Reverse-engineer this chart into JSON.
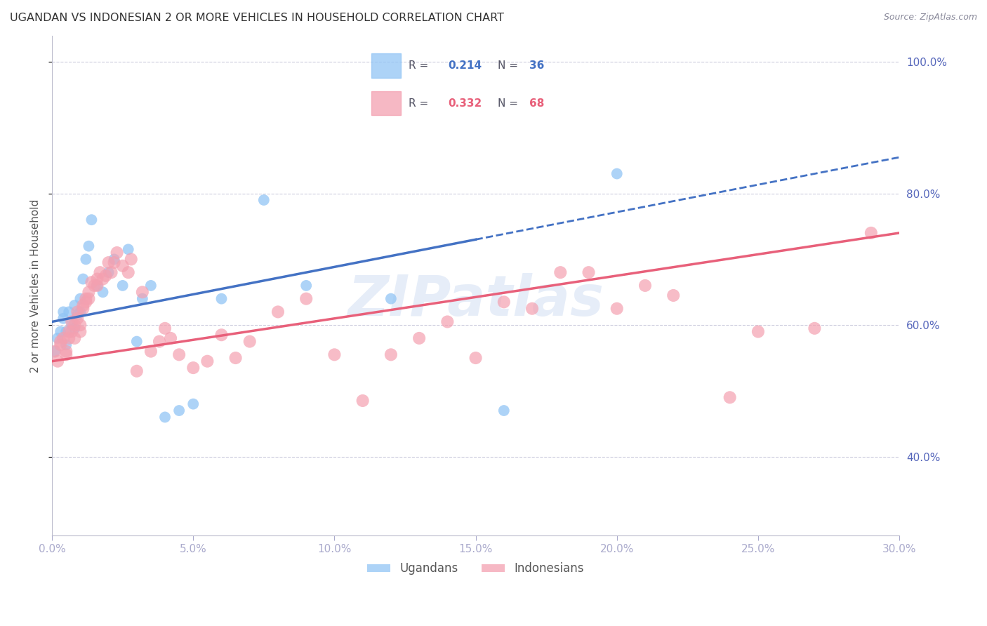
{
  "title": "UGANDAN VS INDONESIAN 2 OR MORE VEHICLES IN HOUSEHOLD CORRELATION CHART",
  "source": "Source: ZipAtlas.com",
  "ylabel": "2 or more Vehicles in Household",
  "xlim": [
    0.0,
    0.3
  ],
  "ylim": [
    0.28,
    1.04
  ],
  "xticks": [
    0.0,
    0.05,
    0.1,
    0.15,
    0.2,
    0.25,
    0.3
  ],
  "yticks_right": [
    0.4,
    0.6,
    0.8,
    1.0
  ],
  "ytick_labels_right": [
    "40.0%",
    "60.0%",
    "80.0%",
    "100.0%"
  ],
  "xtick_labels": [
    "0.0%",
    "5.0%",
    "10.0%",
    "15.0%",
    "20.0%",
    "25.0%",
    "30.0%"
  ],
  "ugandan_color": "#92C5F5",
  "indonesian_color": "#F4A0B0",
  "trend_ugandan_color": "#4472C4",
  "trend_indonesian_color": "#E8607A",
  "R_ugandan": 0.214,
  "N_ugandan": 36,
  "R_indonesian": 0.332,
  "N_indonesian": 68,
  "legend_label_ugandan": "Ugandans",
  "legend_label_indonesian": "Indonesians",
  "watermark": "ZIPatlas",
  "ugandan_x": [
    0.001,
    0.002,
    0.003,
    0.004,
    0.004,
    0.005,
    0.005,
    0.006,
    0.007,
    0.008,
    0.008,
    0.009,
    0.01,
    0.01,
    0.011,
    0.012,
    0.013,
    0.014,
    0.016,
    0.018,
    0.02,
    0.022,
    0.025,
    0.027,
    0.03,
    0.032,
    0.035,
    0.04,
    0.045,
    0.05,
    0.06,
    0.075,
    0.09,
    0.12,
    0.16,
    0.2
  ],
  "ugandan_y": [
    0.56,
    0.58,
    0.59,
    0.62,
    0.61,
    0.59,
    0.57,
    0.62,
    0.6,
    0.595,
    0.63,
    0.615,
    0.62,
    0.64,
    0.67,
    0.7,
    0.72,
    0.76,
    0.66,
    0.65,
    0.68,
    0.7,
    0.66,
    0.715,
    0.575,
    0.64,
    0.66,
    0.46,
    0.47,
    0.48,
    0.64,
    0.79,
    0.66,
    0.64,
    0.47,
    0.83
  ],
  "indonesian_x": [
    0.001,
    0.002,
    0.003,
    0.003,
    0.004,
    0.005,
    0.005,
    0.006,
    0.006,
    0.007,
    0.007,
    0.008,
    0.008,
    0.009,
    0.009,
    0.01,
    0.01,
    0.011,
    0.011,
    0.012,
    0.012,
    0.013,
    0.013,
    0.014,
    0.015,
    0.016,
    0.016,
    0.017,
    0.018,
    0.019,
    0.02,
    0.021,
    0.022,
    0.023,
    0.025,
    0.027,
    0.028,
    0.03,
    0.032,
    0.035,
    0.038,
    0.04,
    0.042,
    0.045,
    0.05,
    0.055,
    0.06,
    0.065,
    0.07,
    0.08,
    0.09,
    0.1,
    0.11,
    0.12,
    0.13,
    0.14,
    0.15,
    0.16,
    0.17,
    0.18,
    0.19,
    0.2,
    0.21,
    0.22,
    0.24,
    0.25,
    0.27,
    0.29
  ],
  "indonesian_y": [
    0.56,
    0.545,
    0.57,
    0.575,
    0.58,
    0.56,
    0.555,
    0.59,
    0.58,
    0.605,
    0.59,
    0.6,
    0.58,
    0.61,
    0.62,
    0.6,
    0.59,
    0.63,
    0.625,
    0.64,
    0.635,
    0.65,
    0.64,
    0.665,
    0.66,
    0.67,
    0.66,
    0.68,
    0.67,
    0.675,
    0.695,
    0.68,
    0.695,
    0.71,
    0.69,
    0.68,
    0.7,
    0.53,
    0.65,
    0.56,
    0.575,
    0.595,
    0.58,
    0.555,
    0.535,
    0.545,
    0.585,
    0.55,
    0.575,
    0.62,
    0.64,
    0.555,
    0.485,
    0.555,
    0.58,
    0.605,
    0.55,
    0.635,
    0.625,
    0.68,
    0.68,
    0.625,
    0.66,
    0.645,
    0.49,
    0.59,
    0.595,
    0.74
  ],
  "trend_ug_x0": 0.0,
  "trend_ug_y0": 0.605,
  "trend_ug_x1": 0.15,
  "trend_ug_y1": 0.73,
  "trend_id_x0": 0.0,
  "trend_id_y0": 0.545,
  "trend_id_x1": 0.3,
  "trend_id_y1": 0.74
}
